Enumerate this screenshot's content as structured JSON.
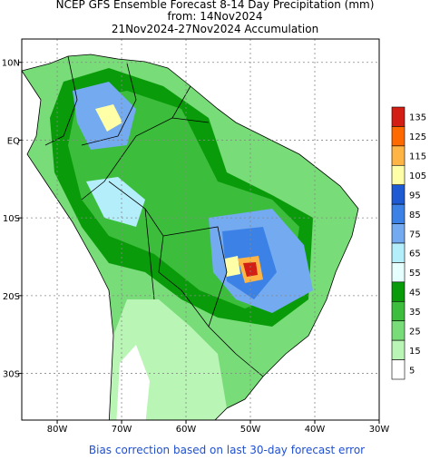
{
  "map": {
    "title": [
      "NCEP GFS Ensemble Forecast 8-14 Day Precipitation (mm)",
      "from: 14Nov2024",
      "21Nov2024-27Nov2024 Accumulation"
    ],
    "xlim": [
      -85.5,
      -30
    ],
    "ylim": [
      -36,
      13
    ],
    "xticks": [
      {
        "value": -80,
        "label": "80W"
      },
      {
        "value": -70,
        "label": "70W"
      },
      {
        "value": -60,
        "label": "60W"
      },
      {
        "value": -50,
        "label": "50W"
      },
      {
        "value": -40,
        "label": "40W"
      },
      {
        "value": -30,
        "label": "30W"
      }
    ],
    "yticks": [
      {
        "value": 10,
        "label": "10N"
      },
      {
        "value": 0,
        "label": "EQ"
      },
      {
        "value": -10,
        "label": "10S"
      },
      {
        "value": -20,
        "label": "20S"
      },
      {
        "value": -30,
        "label": "30S"
      }
    ],
    "grid": true,
    "legend": {
      "levels": [
        135,
        125,
        115,
        105,
        95,
        85,
        75,
        65,
        55,
        45,
        35,
        25,
        15,
        5
      ],
      "colors": [
        "#d21e14",
        "#ff6a00",
        "#ffb446",
        "#ffffa8",
        "#1e5ad2",
        "#3c82e6",
        "#73aaf0",
        "#b4eefa",
        "#e6ffff",
        "#0a9b0a",
        "#3cbe3c",
        "#78dc78",
        "#b9f5b4",
        "#ffffff"
      ]
    },
    "note": "Bias correction based on last 30-day forecast error"
  }
}
